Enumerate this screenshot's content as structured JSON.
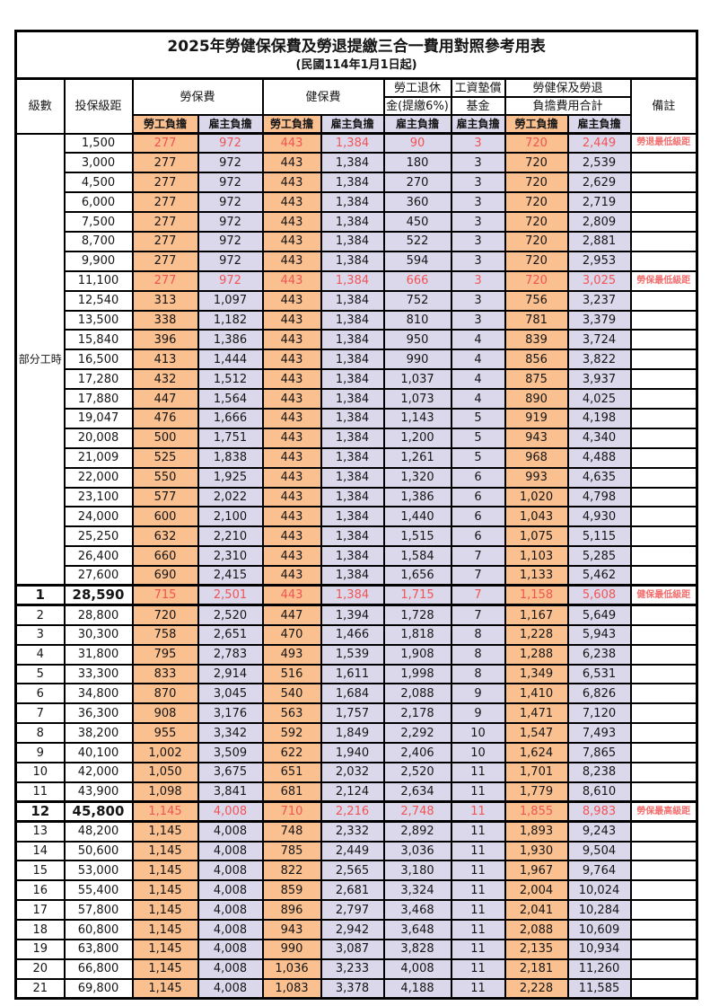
{
  "page": {
    "title": "2025年勞健保保費及勞退提繳三合一費用對照參考用表",
    "subtitle": "(民國114年1月1日起)"
  },
  "table": {
    "columns": {
      "level": "級數",
      "bracket": "投保級距",
      "labor_insurance": "勞保費",
      "health_insurance": "健保費",
      "pension_line1": "勞工退休",
      "pension_line2": "金(提繳6%)",
      "wage_fund_line1": "工資墊償",
      "wage_fund_line2": "基金",
      "total_line1": "勞健保及勞退",
      "total_line2": "負擔費用合計",
      "remark": "備註",
      "employee": "勞工負擔",
      "employer": "雇主負擔"
    },
    "group_label": "部分工時",
    "group_span": 23,
    "colors": {
      "employee_bg": "#FAC090",
      "employer_bg": "#DCD8EC",
      "highlight_text": "#F05454",
      "remark_text": "#F36F6F"
    },
    "rows": [
      {
        "level": "",
        "bracket": "1,500",
        "values": [
          "277",
          "972",
          "443",
          "1,384",
          "90",
          "3",
          "720",
          "2,449"
        ],
        "remark": "勞退最低級距",
        "highlight": true,
        "bold": false
      },
      {
        "level": "",
        "bracket": "3,000",
        "values": [
          "277",
          "972",
          "443",
          "1,384",
          "180",
          "3",
          "720",
          "2,539"
        ],
        "remark": "",
        "highlight": false,
        "bold": false
      },
      {
        "level": "",
        "bracket": "4,500",
        "values": [
          "277",
          "972",
          "443",
          "1,384",
          "270",
          "3",
          "720",
          "2,629"
        ],
        "remark": "",
        "highlight": false,
        "bold": false
      },
      {
        "level": "",
        "bracket": "6,000",
        "values": [
          "277",
          "972",
          "443",
          "1,384",
          "360",
          "3",
          "720",
          "2,719"
        ],
        "remark": "",
        "highlight": false,
        "bold": false
      },
      {
        "level": "",
        "bracket": "7,500",
        "values": [
          "277",
          "972",
          "443",
          "1,384",
          "450",
          "3",
          "720",
          "2,809"
        ],
        "remark": "",
        "highlight": false,
        "bold": false
      },
      {
        "level": "",
        "bracket": "8,700",
        "values": [
          "277",
          "972",
          "443",
          "1,384",
          "522",
          "3",
          "720",
          "2,881"
        ],
        "remark": "",
        "highlight": false,
        "bold": false
      },
      {
        "level": "",
        "bracket": "9,900",
        "values": [
          "277",
          "972",
          "443",
          "1,384",
          "594",
          "3",
          "720",
          "2,953"
        ],
        "remark": "",
        "highlight": false,
        "bold": false
      },
      {
        "level": "",
        "bracket": "11,100",
        "values": [
          "277",
          "972",
          "443",
          "1,384",
          "666",
          "3",
          "720",
          "3,025"
        ],
        "remark": "勞保最低級距",
        "highlight": true,
        "bold": false
      },
      {
        "level": "",
        "bracket": "12,540",
        "values": [
          "313",
          "1,097",
          "443",
          "1,384",
          "752",
          "3",
          "756",
          "3,237"
        ],
        "remark": "",
        "highlight": false,
        "bold": false
      },
      {
        "level": "",
        "bracket": "13,500",
        "values": [
          "338",
          "1,182",
          "443",
          "1,384",
          "810",
          "3",
          "781",
          "3,379"
        ],
        "remark": "",
        "highlight": false,
        "bold": false
      },
      {
        "level": "",
        "bracket": "15,840",
        "values": [
          "396",
          "1,386",
          "443",
          "1,384",
          "950",
          "4",
          "839",
          "3,724"
        ],
        "remark": "",
        "highlight": false,
        "bold": false
      },
      {
        "level": "",
        "bracket": "16,500",
        "values": [
          "413",
          "1,444",
          "443",
          "1,384",
          "990",
          "4",
          "856",
          "3,822"
        ],
        "remark": "",
        "highlight": false,
        "bold": false
      },
      {
        "level": "",
        "bracket": "17,280",
        "values": [
          "432",
          "1,512",
          "443",
          "1,384",
          "1,037",
          "4",
          "875",
          "3,937"
        ],
        "remark": "",
        "highlight": false,
        "bold": false
      },
      {
        "level": "",
        "bracket": "17,880",
        "values": [
          "447",
          "1,564",
          "443",
          "1,384",
          "1,073",
          "4",
          "890",
          "4,025"
        ],
        "remark": "",
        "highlight": false,
        "bold": false
      },
      {
        "level": "",
        "bracket": "19,047",
        "values": [
          "476",
          "1,666",
          "443",
          "1,384",
          "1,143",
          "5",
          "919",
          "4,198"
        ],
        "remark": "",
        "highlight": false,
        "bold": false
      },
      {
        "level": "",
        "bracket": "20,008",
        "values": [
          "500",
          "1,751",
          "443",
          "1,384",
          "1,200",
          "5",
          "943",
          "4,340"
        ],
        "remark": "",
        "highlight": false,
        "bold": false
      },
      {
        "level": "",
        "bracket": "21,009",
        "values": [
          "525",
          "1,838",
          "443",
          "1,384",
          "1,261",
          "5",
          "968",
          "4,488"
        ],
        "remark": "",
        "highlight": false,
        "bold": false
      },
      {
        "level": "",
        "bracket": "22,000",
        "values": [
          "550",
          "1,925",
          "443",
          "1,384",
          "1,320",
          "6",
          "993",
          "4,635"
        ],
        "remark": "",
        "highlight": false,
        "bold": false
      },
      {
        "level": "",
        "bracket": "23,100",
        "values": [
          "577",
          "2,022",
          "443",
          "1,384",
          "1,386",
          "6",
          "1,020",
          "4,798"
        ],
        "remark": "",
        "highlight": false,
        "bold": false
      },
      {
        "level": "",
        "bracket": "24,000",
        "values": [
          "600",
          "2,100",
          "443",
          "1,384",
          "1,440",
          "6",
          "1,043",
          "4,930"
        ],
        "remark": "",
        "highlight": false,
        "bold": false
      },
      {
        "level": "",
        "bracket": "25,250",
        "values": [
          "632",
          "2,210",
          "443",
          "1,384",
          "1,515",
          "6",
          "1,075",
          "5,115"
        ],
        "remark": "",
        "highlight": false,
        "bold": false
      },
      {
        "level": "",
        "bracket": "26,400",
        "values": [
          "660",
          "2,310",
          "443",
          "1,384",
          "1,584",
          "7",
          "1,103",
          "5,285"
        ],
        "remark": "",
        "highlight": false,
        "bold": false
      },
      {
        "level": "",
        "bracket": "27,600",
        "values": [
          "690",
          "2,415",
          "443",
          "1,384",
          "1,656",
          "7",
          "1,133",
          "5,462"
        ],
        "remark": "",
        "highlight": false,
        "bold": false
      },
      {
        "level": "1",
        "bracket": "28,590",
        "values": [
          "715",
          "2,501",
          "443",
          "1,384",
          "1,715",
          "7",
          "1,158",
          "5,608"
        ],
        "remark": "健保最低級距",
        "highlight": true,
        "bold": true
      },
      {
        "level": "2",
        "bracket": "28,800",
        "values": [
          "720",
          "2,520",
          "447",
          "1,394",
          "1,728",
          "7",
          "1,167",
          "5,649"
        ],
        "remark": "",
        "highlight": false,
        "bold": false
      },
      {
        "level": "3",
        "bracket": "30,300",
        "values": [
          "758",
          "2,651",
          "470",
          "1,466",
          "1,818",
          "8",
          "1,228",
          "5,943"
        ],
        "remark": "",
        "highlight": false,
        "bold": false
      },
      {
        "level": "4",
        "bracket": "31,800",
        "values": [
          "795",
          "2,783",
          "493",
          "1,539",
          "1,908",
          "8",
          "1,288",
          "6,238"
        ],
        "remark": "",
        "highlight": false,
        "bold": false
      },
      {
        "level": "5",
        "bracket": "33,300",
        "values": [
          "833",
          "2,914",
          "516",
          "1,611",
          "1,998",
          "8",
          "1,349",
          "6,531"
        ],
        "remark": "",
        "highlight": false,
        "bold": false
      },
      {
        "level": "6",
        "bracket": "34,800",
        "values": [
          "870",
          "3,045",
          "540",
          "1,684",
          "2,088",
          "9",
          "1,410",
          "6,826"
        ],
        "remark": "",
        "highlight": false,
        "bold": false
      },
      {
        "level": "7",
        "bracket": "36,300",
        "values": [
          "908",
          "3,176",
          "563",
          "1,757",
          "2,178",
          "9",
          "1,471",
          "7,120"
        ],
        "remark": "",
        "highlight": false,
        "bold": false
      },
      {
        "level": "8",
        "bracket": "38,200",
        "values": [
          "955",
          "3,342",
          "592",
          "1,849",
          "2,292",
          "10",
          "1,547",
          "7,493"
        ],
        "remark": "",
        "highlight": false,
        "bold": false
      },
      {
        "level": "9",
        "bracket": "40,100",
        "values": [
          "1,002",
          "3,509",
          "622",
          "1,940",
          "2,406",
          "10",
          "1,624",
          "7,865"
        ],
        "remark": "",
        "highlight": false,
        "bold": false
      },
      {
        "level": "10",
        "bracket": "42,000",
        "values": [
          "1,050",
          "3,675",
          "651",
          "2,032",
          "2,520",
          "11",
          "1,701",
          "8,238"
        ],
        "remark": "",
        "highlight": false,
        "bold": false
      },
      {
        "level": "11",
        "bracket": "43,900",
        "values": [
          "1,098",
          "3,841",
          "681",
          "2,124",
          "2,634",
          "11",
          "1,779",
          "8,610"
        ],
        "remark": "",
        "highlight": false,
        "bold": false
      },
      {
        "level": "12",
        "bracket": "45,800",
        "values": [
          "1,145",
          "4,008",
          "710",
          "2,216",
          "2,748",
          "11",
          "1,855",
          "8,983"
        ],
        "remark": "勞保最高級距",
        "highlight": true,
        "bold": true
      },
      {
        "level": "13",
        "bracket": "48,200",
        "values": [
          "1,145",
          "4,008",
          "748",
          "2,332",
          "2,892",
          "11",
          "1,893",
          "9,243"
        ],
        "remark": "",
        "highlight": false,
        "bold": false
      },
      {
        "level": "14",
        "bracket": "50,600",
        "values": [
          "1,145",
          "4,008",
          "785",
          "2,449",
          "3,036",
          "11",
          "1,930",
          "9,504"
        ],
        "remark": "",
        "highlight": false,
        "bold": false
      },
      {
        "level": "15",
        "bracket": "53,000",
        "values": [
          "1,145",
          "4,008",
          "822",
          "2,565",
          "3,180",
          "11",
          "1,967",
          "9,764"
        ],
        "remark": "",
        "highlight": false,
        "bold": false
      },
      {
        "level": "16",
        "bracket": "55,400",
        "values": [
          "1,145",
          "4,008",
          "859",
          "2,681",
          "3,324",
          "11",
          "2,004",
          "10,024"
        ],
        "remark": "",
        "highlight": false,
        "bold": false
      },
      {
        "level": "17",
        "bracket": "57,800",
        "values": [
          "1,145",
          "4,008",
          "896",
          "2,797",
          "3,468",
          "11",
          "2,041",
          "10,284"
        ],
        "remark": "",
        "highlight": false,
        "bold": false
      },
      {
        "level": "18",
        "bracket": "60,800",
        "values": [
          "1,145",
          "4,008",
          "943",
          "2,942",
          "3,648",
          "11",
          "2,088",
          "10,609"
        ],
        "remark": "",
        "highlight": false,
        "bold": false
      },
      {
        "level": "19",
        "bracket": "63,800",
        "values": [
          "1,145",
          "4,008",
          "990",
          "3,087",
          "3,828",
          "11",
          "2,135",
          "10,934"
        ],
        "remark": "",
        "highlight": false,
        "bold": false
      },
      {
        "level": "20",
        "bracket": "66,800",
        "values": [
          "1,145",
          "4,008",
          "1,036",
          "3,233",
          "4,008",
          "11",
          "2,181",
          "11,260"
        ],
        "remark": "",
        "highlight": false,
        "bold": false
      },
      {
        "level": "21",
        "bracket": "69,800",
        "values": [
          "1,145",
          "4,008",
          "1,083",
          "3,378",
          "4,188",
          "11",
          "2,228",
          "11,585"
        ],
        "remark": "",
        "highlight": false,
        "bold": false
      }
    ]
  }
}
